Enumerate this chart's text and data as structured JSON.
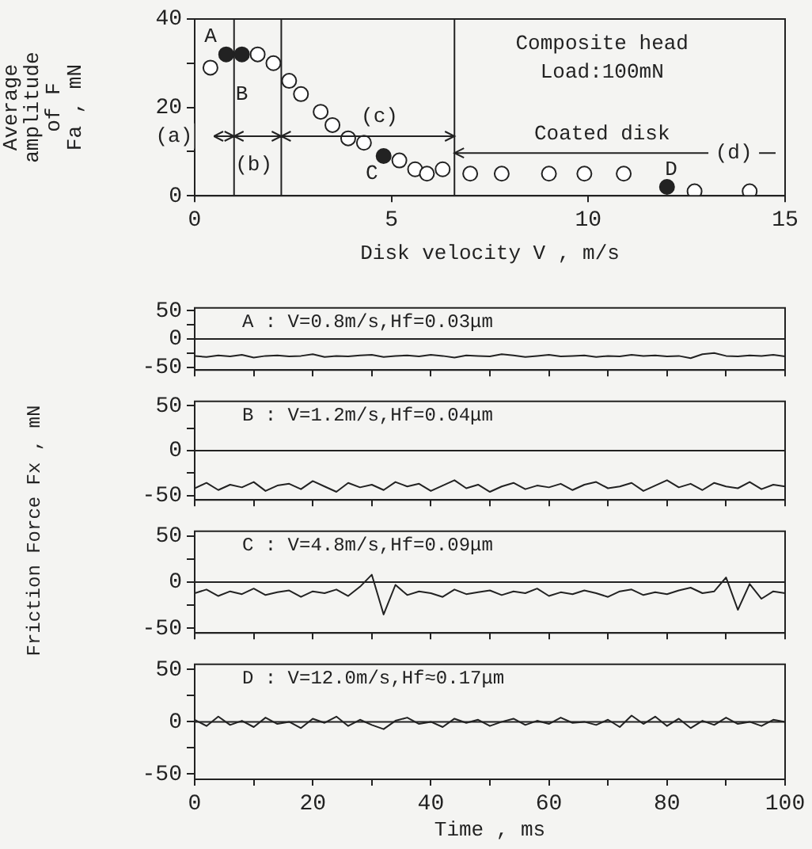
{
  "chart_data": [
    {
      "type": "scatter",
      "xlabel": "Disk velocity V , m/s",
      "ylabel": "Average\namplitude\nof F\nFa , mN",
      "xlim": [
        0,
        15
      ],
      "ylim": [
        0,
        40
      ],
      "xticks": [
        0,
        5,
        10,
        15
      ],
      "yticks": [
        0,
        {
          "value": 10,
          "label": null
        },
        20,
        {
          "value": 30,
          "label": null
        },
        40
      ],
      "grid": false,
      "legend": false,
      "marker": "circle",
      "series": [
        {
          "color": "#ffffff",
          "x": [
            0.4,
            1.6,
            2.0,
            2.4,
            2.7,
            3.2,
            3.5,
            3.9,
            4.3,
            5.2,
            5.6,
            5.9,
            6.3,
            7.0,
            7.8,
            9.0,
            9.9,
            10.9,
            12.7,
            14.1
          ],
          "values": [
            29,
            32,
            30,
            26,
            23,
            19,
            16,
            13,
            12,
            8,
            6,
            5,
            6,
            5,
            5,
            5,
            5,
            5,
            1,
            1
          ]
        },
        {
          "color": "#222222",
          "x": [
            0.8,
            1.2,
            4.8,
            12.0
          ],
          "values": [
            32,
            32,
            9,
            2
          ]
        }
      ],
      "ref_lines": [
        {
          "axis": "x",
          "value": 1.0
        },
        {
          "axis": "x",
          "value": 2.2
        },
        {
          "axis": "x",
          "value": 6.6
        }
      ],
      "annotations": [
        "(a)",
        "(b)",
        "(c)",
        "(d)",
        "A",
        "B",
        "C",
        "D",
        "Composite head",
        "Load:100mN",
        "Coated disk"
      ]
    },
    {
      "type": "line",
      "ylabel": "Friction Force Fx , mN",
      "xlim": [
        0,
        100
      ],
      "ylim": [
        -55,
        55
      ],
      "xticks": [
        0,
        {
          "value": 10,
          "label": null
        },
        {
          "value": 20,
          "label": null
        },
        {
          "value": 30,
          "label": null
        },
        {
          "value": 40,
          "label": null
        },
        {
          "value": 50,
          "label": null
        },
        {
          "value": 60,
          "label": null
        },
        {
          "value": 70,
          "label": null
        },
        {
          "value": 80,
          "label": null
        },
        {
          "value": 90,
          "label": null
        },
        {
          "value": 100,
          "label": null
        }
      ],
      "yticks": [
        -50,
        {
          "value": -25,
          "label": null
        },
        0,
        {
          "value": 25,
          "label": null
        },
        50
      ],
      "tick_labels": "y",
      "grid": false,
      "legend": false,
      "marker": "none",
      "annotations": [
        "A : V=0.8m/s,Hf=0.03μm"
      ],
      "ref_lines": [
        {
          "axis": "y",
          "value": 0
        }
      ],
      "x": [
        0,
        2,
        4,
        6,
        8,
        10,
        12,
        14,
        16,
        18,
        20,
        22,
        24,
        26,
        28,
        30,
        32,
        34,
        36,
        38,
        40,
        42,
        44,
        46,
        48,
        50,
        52,
        54,
        56,
        58,
        60,
        62,
        64,
        66,
        68,
        70,
        72,
        74,
        76,
        78,
        80,
        82,
        84,
        86,
        88,
        90,
        92,
        94,
        96,
        98,
        100
      ],
      "series": [
        {
          "color": "#222222",
          "values": [
            -30,
            -32,
            -29,
            -31,
            -28,
            -33,
            -30,
            -29,
            -31,
            -30,
            -27,
            -32,
            -30,
            -31,
            -29,
            -28,
            -32,
            -30,
            -29,
            -31,
            -28,
            -30,
            -33,
            -29,
            -30,
            -31,
            -27,
            -29,
            -32,
            -30,
            -28,
            -31,
            -30,
            -29,
            -32,
            -30,
            -31,
            -28,
            -30,
            -29,
            -31,
            -30,
            -34,
            -27,
            -25,
            -30,
            -31,
            -29,
            -30,
            -28,
            -31
          ]
        }
      ]
    },
    {
      "type": "line",
      "xlim": [
        0,
        100
      ],
      "ylim": [
        -55,
        55
      ],
      "xticks": [
        0,
        {
          "value": 10,
          "label": null
        },
        {
          "value": 20,
          "label": null
        },
        {
          "value": 30,
          "label": null
        },
        {
          "value": 40,
          "label": null
        },
        {
          "value": 50,
          "label": null
        },
        {
          "value": 60,
          "label": null
        },
        {
          "value": 70,
          "label": null
        },
        {
          "value": 80,
          "label": null
        },
        {
          "value": 90,
          "label": null
        },
        {
          "value": 100,
          "label": null
        }
      ],
      "yticks": [
        -50,
        {
          "value": -25,
          "label": null
        },
        0,
        {
          "value": 25,
          "label": null
        },
        50
      ],
      "tick_labels": "y",
      "grid": false,
      "legend": false,
      "marker": "none",
      "annotations": [
        "B : V=1.2m/s,Hf=0.04μm"
      ],
      "ref_lines": [
        {
          "axis": "y",
          "value": 0
        }
      ],
      "x": [
        0,
        2,
        4,
        6,
        8,
        10,
        12,
        14,
        16,
        18,
        20,
        22,
        24,
        26,
        28,
        30,
        32,
        34,
        36,
        38,
        40,
        42,
        44,
        46,
        48,
        50,
        52,
        54,
        56,
        58,
        60,
        62,
        64,
        66,
        68,
        70,
        72,
        74,
        76,
        78,
        80,
        82,
        84,
        86,
        88,
        90,
        92,
        94,
        96,
        98,
        100
      ],
      "series": [
        {
          "color": "#222222",
          "values": [
            -42,
            -36,
            -44,
            -38,
            -41,
            -35,
            -45,
            -39,
            -37,
            -43,
            -34,
            -40,
            -46,
            -36,
            -41,
            -38,
            -44,
            -35,
            -40,
            -37,
            -45,
            -39,
            -33,
            -42,
            -38,
            -46,
            -40,
            -36,
            -43,
            -39,
            -41,
            -37,
            -44,
            -38,
            -35,
            -42,
            -40,
            -36,
            -45,
            -39,
            -33,
            -41,
            -37,
            -44,
            -36,
            -40,
            -42,
            -35,
            -43,
            -38,
            -40
          ]
        }
      ]
    },
    {
      "type": "line",
      "xlim": [
        0,
        100
      ],
      "ylim": [
        -55,
        55
      ],
      "xticks": [
        0,
        {
          "value": 10,
          "label": null
        },
        {
          "value": 20,
          "label": null
        },
        {
          "value": 30,
          "label": null
        },
        {
          "value": 40,
          "label": null
        },
        {
          "value": 50,
          "label": null
        },
        {
          "value": 60,
          "label": null
        },
        {
          "value": 70,
          "label": null
        },
        {
          "value": 80,
          "label": null
        },
        {
          "value": 90,
          "label": null
        },
        {
          "value": 100,
          "label": null
        }
      ],
      "yticks": [
        -50,
        {
          "value": -25,
          "label": null
        },
        0,
        {
          "value": 25,
          "label": null
        },
        50
      ],
      "tick_labels": "y",
      "grid": false,
      "legend": false,
      "marker": "none",
      "annotations": [
        "C : V=4.8m/s,Hf=0.09μm"
      ],
      "ref_lines": [
        {
          "axis": "y",
          "value": 0
        }
      ],
      "x": [
        0,
        2,
        4,
        6,
        8,
        10,
        12,
        14,
        16,
        18,
        20,
        22,
        24,
        26,
        28,
        30,
        32,
        34,
        36,
        38,
        40,
        42,
        44,
        46,
        48,
        50,
        52,
        54,
        56,
        58,
        60,
        62,
        64,
        66,
        68,
        70,
        72,
        74,
        76,
        78,
        80,
        82,
        84,
        86,
        88,
        90,
        92,
        94,
        96,
        98,
        100
      ],
      "series": [
        {
          "color": "#222222",
          "values": [
            -12,
            -8,
            -15,
            -10,
            -13,
            -7,
            -14,
            -11,
            -9,
            -16,
            -10,
            -12,
            -8,
            -15,
            -5,
            8,
            -35,
            -3,
            -14,
            -10,
            -12,
            -16,
            -8,
            -13,
            -11,
            -9,
            -14,
            -10,
            -12,
            -7,
            -15,
            -11,
            -13,
            -9,
            -12,
            -16,
            -10,
            -8,
            -14,
            -11,
            -13,
            -9,
            -6,
            -12,
            -10,
            5,
            -30,
            -2,
            -18,
            -10,
            -12
          ]
        }
      ]
    },
    {
      "type": "line",
      "xlabel": "Time , ms",
      "xlim": [
        0,
        100
      ],
      "ylim": [
        -55,
        55
      ],
      "xticks": [
        0,
        {
          "value": 10,
          "label": null
        },
        20,
        {
          "value": 30,
          "label": null
        },
        40,
        {
          "value": 50,
          "label": null
        },
        60,
        {
          "value": 70,
          "label": null
        },
        80,
        {
          "value": 90,
          "label": null
        },
        100
      ],
      "yticks": [
        -50,
        {
          "value": -25,
          "label": null
        },
        0,
        {
          "value": 25,
          "label": null
        },
        50
      ],
      "grid": false,
      "legend": false,
      "marker": "none",
      "annotations": [
        "D : V=12.0m/s,Hf≈0.17μm"
      ],
      "ref_lines": [
        {
          "axis": "y",
          "value": 0
        }
      ],
      "x": [
        0,
        2,
        4,
        6,
        8,
        10,
        12,
        14,
        16,
        18,
        20,
        22,
        24,
        26,
        28,
        30,
        32,
        34,
        36,
        38,
        40,
        42,
        44,
        46,
        48,
        50,
        52,
        54,
        56,
        58,
        60,
        62,
        64,
        66,
        68,
        70,
        72,
        74,
        76,
        78,
        80,
        82,
        84,
        86,
        88,
        90,
        92,
        94,
        96,
        98,
        100
      ],
      "series": [
        {
          "color": "#222222",
          "values": [
            2,
            -4,
            5,
            -3,
            1,
            -5,
            4,
            -2,
            0,
            -6,
            3,
            -1,
            5,
            -4,
            2,
            -3,
            -7,
            1,
            4,
            -2,
            0,
            -5,
            3,
            -1,
            2,
            -4,
            0,
            3,
            -3,
            1,
            -2,
            4,
            -1,
            0,
            -3,
            2,
            -5,
            6,
            -2,
            5,
            -4,
            3,
            -6,
            1,
            -3,
            4,
            -2,
            0,
            -4,
            2,
            0
          ]
        }
      ]
    }
  ]
}
